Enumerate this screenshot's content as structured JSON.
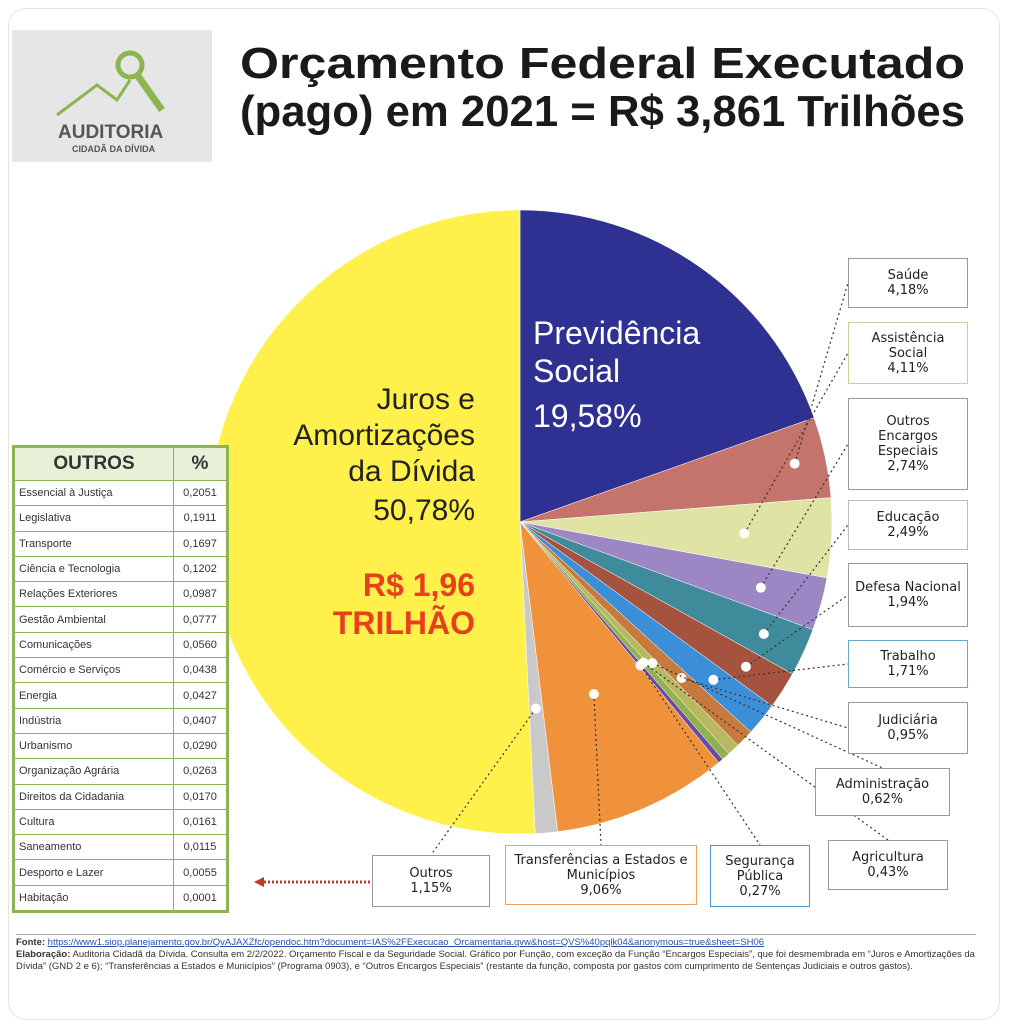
{
  "logo": {
    "name": "AUDITORIA",
    "subname": "CIDADÃ DA DÍVIDA"
  },
  "chart_data": {
    "type": "pie",
    "title": [
      "Orçamento Federal Executado",
      "(pago) em 2021 = R$ 3,861 Trilhões"
    ],
    "categories": [
      "Previdência Social",
      "Saúde",
      "Assistência Social",
      "Outros Encargos Especiais",
      "Educação",
      "Defesa Nacional",
      "Trabalho",
      "Judiciária",
      "Administração",
      "Agricultura",
      "Segurança Pública",
      "Transferências a Estados e Municípios",
      "Outros",
      "Juros e Amortizações da Dívida"
    ],
    "values": [
      19.58,
      4.18,
      4.11,
      2.74,
      2.49,
      1.94,
      1.71,
      0.95,
      0.62,
      0.43,
      0.27,
      9.06,
      1.15,
      50.78
    ],
    "value_labels": [
      "19,58%",
      "4,18%",
      "4,11%",
      "2,74%",
      "2,49%",
      "1,94%",
      "1,71%",
      "0,95%",
      "0,62%",
      "0,43%",
      "0,27%",
      "9,06%",
      "1,15%",
      "50,78%"
    ],
    "colors": [
      "#2e3192",
      "#c5746b",
      "#dfe4a4",
      "#9c86c4",
      "#3f8a9b",
      "#a5533f",
      "#3b8fd9",
      "#c77a3e",
      "#b9b760",
      "#8fb24c",
      "#6b4ba2",
      "#f0923c",
      "#c9c9c9",
      "#fff04b"
    ],
    "annotation": "R$ 1,96 TRILHÃO"
  },
  "others_table": {
    "header": [
      "OUTROS",
      "%"
    ],
    "rows": [
      [
        "Essencial à Justiça",
        "0,2051"
      ],
      [
        "Legislativa",
        "0,1911"
      ],
      [
        "Transporte",
        "0,1697"
      ],
      [
        "Ciência e Tecnologia",
        "0,1202"
      ],
      [
        "Relações Exteriores",
        "0,0987"
      ],
      [
        "Gestão Ambiental",
        "0,0777"
      ],
      [
        "Comunicações",
        "0,0560"
      ],
      [
        "Comércio e Serviços",
        "0,0438"
      ],
      [
        "Energia",
        "0,0427"
      ],
      [
        "Indústria",
        "0,0407"
      ],
      [
        "Urbanismo",
        "0,0290"
      ],
      [
        "Organização Agrária",
        "0,0263"
      ],
      [
        "Direitos da Cidadania",
        "0,0170"
      ],
      [
        "Cultura",
        "0,0161"
      ],
      [
        "Saneamento",
        "0,0115"
      ],
      [
        "Desporto e Lazer",
        "0,0055"
      ],
      [
        "Habitação",
        "0,0001"
      ]
    ]
  },
  "footer": {
    "source_label": "Fonte:",
    "source_url": "https://www1.siop.planejamento.gov.br/QvAJAXZfc/opendoc.htm?document=IAS%2FExecucao_Orcamentaria.qvw&host=QVS%40pqlk04&anonymous=true&sheet=SH06",
    "credit_label": "Elaboração:",
    "credit_text": "Auditoria Cidadã da Dívida. Consulta em 2/2/2022. Orçamento Fiscal e da Seguridade Social. Gráfico por Função, com exceção da Função “Encargos Especiais”, que foi desmembrada em “Juros e Amortizações da Dívida” (GND 2 e 6); “Transferências a Estados e Municípios” (Programa 0903), e “Outros Encargos Especiais” (restante da função, composta por gastos com cumprimento de Sentenças Judiciais e outros gastos)."
  }
}
